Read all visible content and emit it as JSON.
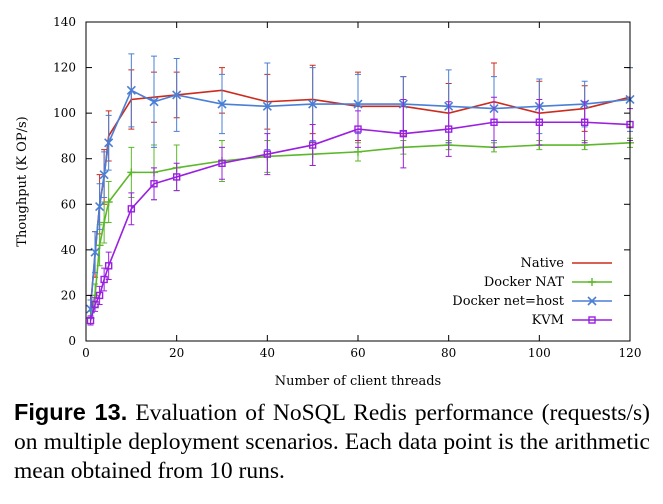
{
  "chart_data": {
    "type": "line",
    "title": "",
    "xlabel": "Number of client threads",
    "ylabel": "Thoughput (K OP/s)",
    "xlim": [
      0,
      120
    ],
    "ylim": [
      0,
      140
    ],
    "xticks": [
      0,
      20,
      40,
      60,
      80,
      100,
      120
    ],
    "yticks": [
      0,
      20,
      40,
      60,
      80,
      100,
      120,
      140
    ],
    "grid": false,
    "legend_position": "bottom-right",
    "series": [
      {
        "name": "Native",
        "color": "#cc2b1d",
        "marker": "none",
        "x": [
          1,
          2,
          3,
          4,
          5,
          10,
          15,
          20,
          30,
          40,
          50,
          60,
          70,
          80,
          90,
          100,
          110,
          120
        ],
        "y": [
          15,
          38,
          60,
          72,
          90,
          106,
          107,
          108,
          110,
          105,
          106,
          103,
          103,
          100,
          105,
          100,
          102,
          107
        ],
        "err": [
          5,
          10,
          13,
          12,
          11,
          13,
          11,
          10,
          10,
          12,
          15,
          15,
          13,
          13,
          17,
          14,
          10,
          13
        ]
      },
      {
        "name": "Docker NAT",
        "color": "#5cb82a",
        "marker": "plus",
        "x": [
          1,
          2,
          3,
          4,
          5,
          10,
          15,
          20,
          30,
          40,
          50,
          60,
          70,
          80,
          90,
          100,
          110,
          120
        ],
        "y": [
          10,
          20,
          42,
          52,
          61,
          74,
          74,
          76,
          79,
          81,
          82,
          83,
          85,
          86,
          85,
          86,
          86,
          87
        ],
        "err": [
          3,
          5,
          9,
          9,
          9,
          11,
          12,
          10,
          9,
          7,
          5,
          4,
          3,
          2,
          2,
          2,
          2,
          2
        ]
      },
      {
        "name": "Docker net=host",
        "color": "#4a7fd6",
        "marker": "x",
        "x": [
          1,
          2,
          3,
          4,
          5,
          10,
          15,
          20,
          30,
          40,
          50,
          60,
          70,
          80,
          90,
          100,
          110,
          120
        ],
        "y": [
          14,
          39,
          59,
          73,
          87,
          110,
          105,
          108,
          104,
          103,
          104,
          104,
          104,
          103,
          102,
          103,
          104,
          106
        ],
        "err": [
          4,
          9,
          10,
          10,
          12,
          16,
          20,
          16,
          13,
          19,
          16,
          13,
          12,
          16,
          14,
          12,
          10,
          14
        ]
      },
      {
        "name": "KVM",
        "color": "#9a1fe0",
        "marker": "square",
        "x": [
          1,
          2,
          3,
          4,
          5,
          10,
          15,
          20,
          30,
          40,
          50,
          60,
          70,
          80,
          90,
          100,
          110,
          120
        ],
        "y": [
          9,
          16,
          20,
          27,
          33,
          58,
          69,
          72,
          78,
          82,
          86,
          93,
          91,
          93,
          96,
          96,
          96,
          95
        ],
        "err": [
          2,
          3,
          4,
          5,
          6,
          7,
          7,
          6,
          7,
          9,
          9,
          8,
          15,
          12,
          11,
          10,
          9,
          7
        ]
      }
    ]
  },
  "caption": {
    "label": "Figure 13.",
    "text": " Evaluation of NoSQL Redis performance (requests/s) on multiple deployment scenarios. Each data point is the arithmetic mean obtained from 10 runs."
  }
}
